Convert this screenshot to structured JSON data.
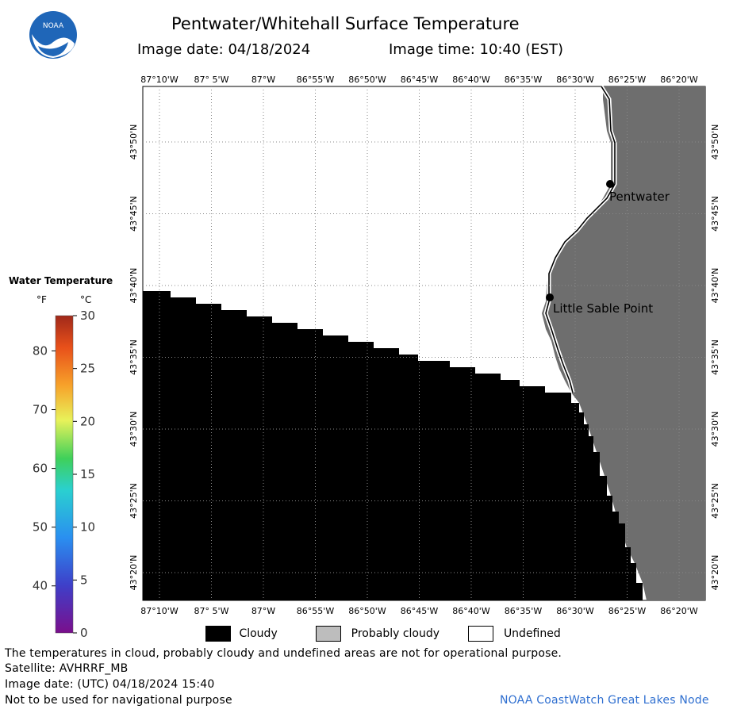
{
  "header": {
    "title": "Pentwater/Whitehall Surface Temperature",
    "image_date_label": "Image date: 04/18/2024",
    "image_time_label": "Image time: 10:40 (EST)",
    "logo_text": "NOAA"
  },
  "map": {
    "lon_labels": [
      "87°10'W",
      "87° 5'W",
      "87°W",
      "86°55'W",
      "86°50'W",
      "86°45'W",
      "86°40'W",
      "86°35'W",
      "86°30'W",
      "86°25'W",
      "86°20'W"
    ],
    "lat_labels": [
      "43°50'N",
      "43°45'N",
      "43°40'N",
      "43°35'N",
      "43°30'N",
      "43°25'N",
      "43°20'N"
    ],
    "places": [
      {
        "name": "Pentwater"
      },
      {
        "name": "Little Sable Point"
      }
    ],
    "colors": {
      "cloudy": "#000000",
      "probably_cloudy": "#6e6e6e",
      "undefined": "#ffffff"
    }
  },
  "colorbar": {
    "title": "Water Temperature",
    "unit_f": "°F",
    "unit_c": "°C",
    "f_ticks": [
      "80",
      "70",
      "60",
      "50",
      "40"
    ],
    "c_ticks": [
      "30",
      "25",
      "20",
      "15",
      "10",
      "5",
      "0"
    ]
  },
  "legend": {
    "cloudy": "Cloudy",
    "probably_cloudy": "Probably cloudy",
    "undefined": "Undefined"
  },
  "footer": {
    "disclaimer": "The temperatures in cloud, probably cloudy and undefined areas are not for operational purpose.",
    "satellite": "Satellite: AVHRRF_MB",
    "utc_date": "Image date: (UTC) 04/18/2024  15:40",
    "nav_warning": "Not to be used for navigational purpose",
    "credit": "NOAA CoastWatch Great Lakes Node"
  }
}
